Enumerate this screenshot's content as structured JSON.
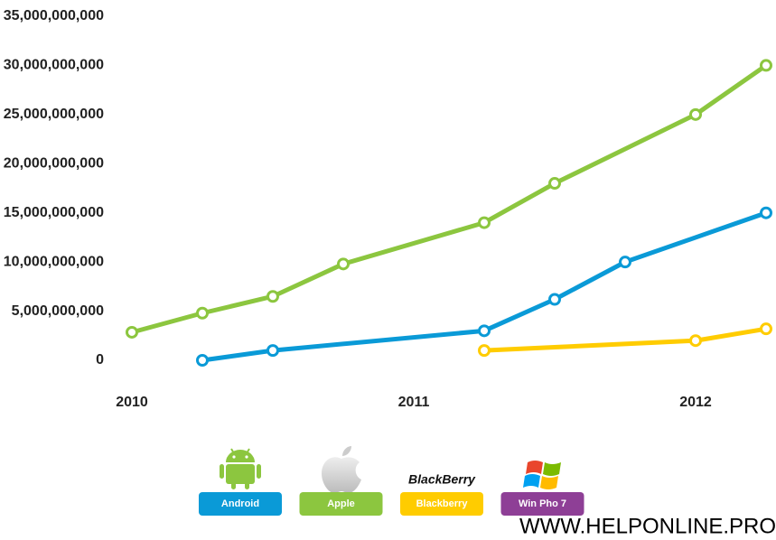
{
  "chart_data": {
    "type": "line",
    "ylim": [
      0,
      35000000000
    ],
    "yticks": [
      {
        "value": 0,
        "label": "0"
      },
      {
        "value": 5000000000,
        "label": "5,000,000,000"
      },
      {
        "value": 10000000000,
        "label": "10,000,000,000"
      },
      {
        "value": 15000000000,
        "label": "15,000,000,000"
      },
      {
        "value": 20000000000,
        "label": "20,000,000,000"
      },
      {
        "value": 25000000000,
        "label": "25,000,000,000"
      },
      {
        "value": 30000000000,
        "label": "30,000,000,000"
      },
      {
        "value": 35000000000,
        "label": "35,000,000,000"
      }
    ],
    "xlim": [
      2010,
      2012.25
    ],
    "xticks": [
      2010,
      2011,
      2012
    ],
    "grid": false,
    "series": [
      {
        "name": "Android",
        "color": "#0a9ad7",
        "x": [
          2010.25,
          2010.5,
          2011.25,
          2011.5,
          2011.75,
          2012.25
        ],
        "values": [
          0,
          1000000000,
          3000000000,
          6200000000,
          10000000000,
          15000000000
        ]
      },
      {
        "name": "Apple",
        "color": "#8cc63f",
        "x": [
          2010,
          2010.25,
          2010.5,
          2010.75,
          2011.25,
          2011.5,
          2012,
          2012.25
        ],
        "values": [
          2850000000,
          4800000000,
          6500000000,
          9800000000,
          14000000000,
          18000000000,
          25000000000,
          30000000000
        ]
      },
      {
        "name": "Blackberry",
        "color": "#ffcc00",
        "logo": "BlackBerry",
        "x": [
          2011.25,
          2012,
          2012.25
        ],
        "values": [
          1000000000,
          2000000000,
          3200000000
        ]
      },
      {
        "name": "Win Pho 7",
        "color": "#8e3f96",
        "x": [],
        "values": []
      }
    ],
    "watermark": "WWW.HELPONLINE.PRO"
  }
}
